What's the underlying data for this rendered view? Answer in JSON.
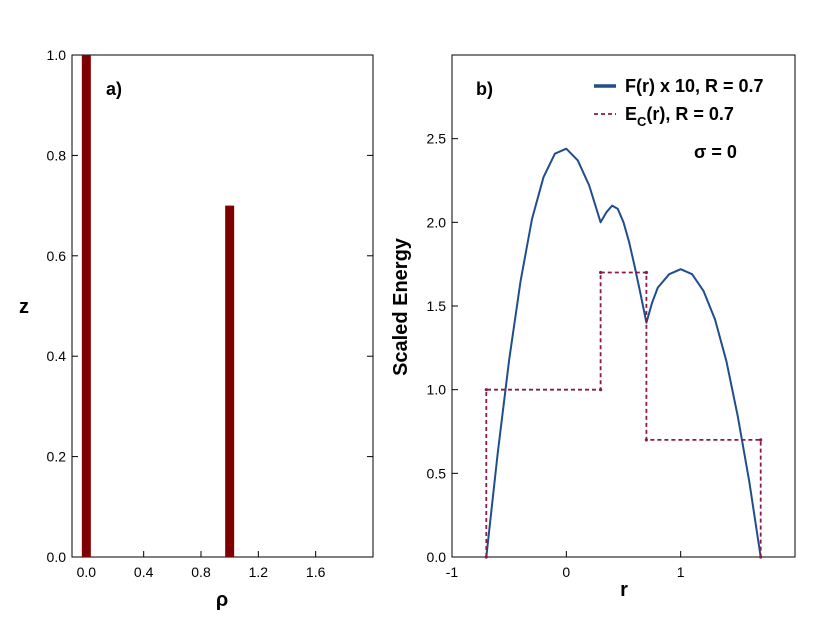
{
  "chart_data": [
    {
      "type": "bar",
      "panel_label": "a)",
      "xlabel": "ρ",
      "ylabel": "z",
      "xlim": [
        -0.1,
        2.0
      ],
      "ylim": [
        0,
        1.0
      ],
      "xticks": [
        0.0,
        0.4,
        0.8,
        1.2,
        1.6
      ],
      "xtick_labels": [
        "0.0",
        "0.4",
        "0.8",
        "1.2",
        "1.6"
      ],
      "yticks": [
        0.0,
        0.2,
        0.4,
        0.6,
        0.8,
        1.0
      ],
      "ytick_labels": [
        "0.0",
        "0.2",
        "0.4",
        "0.6",
        "0.8",
        "1.0"
      ],
      "bars": [
        {
          "x": 0.0,
          "height": 1.0
        },
        {
          "x": 1.0,
          "height": 0.7
        }
      ],
      "bar_color": "#7f0000",
      "grid": false
    },
    {
      "type": "line",
      "panel_label": "b)",
      "xlabel": "r",
      "ylabel": "Scaled Energy",
      "xlim": [
        -1,
        2.0
      ],
      "ylim": [
        0,
        3.0
      ],
      "xticks": [
        -1,
        0,
        1
      ],
      "xtick_labels": [
        "-1",
        "0",
        "1"
      ],
      "yticks": [
        0.0,
        0.5,
        1.0,
        1.5,
        2.0,
        2.5
      ],
      "ytick_labels": [
        "0.0",
        "0.5",
        "1.0",
        "1.5",
        "2.0",
        "2.5"
      ],
      "annotation": "σ = 0",
      "legend_position": "top-right",
      "grid": false,
      "series": [
        {
          "name": "F(r) x 10, R = 0.7",
          "color": "#1f4e8c",
          "style": "solid",
          "x": [
            -0.7,
            -0.6,
            -0.5,
            -0.4,
            -0.3,
            -0.2,
            -0.1,
            0.0,
            0.1,
            0.2,
            0.3,
            0.35,
            0.4,
            0.45,
            0.5,
            0.55,
            0.6,
            0.65,
            0.7,
            0.75,
            0.8,
            0.9,
            1.0,
            1.1,
            1.2,
            1.3,
            1.4,
            1.5,
            1.6,
            1.7
          ],
          "y": [
            0.0,
            0.62,
            1.18,
            1.65,
            2.02,
            2.27,
            2.41,
            2.44,
            2.37,
            2.22,
            2.0,
            2.06,
            2.1,
            2.08,
            2.0,
            1.88,
            1.73,
            1.57,
            1.4,
            1.52,
            1.61,
            1.69,
            1.72,
            1.69,
            1.59,
            1.42,
            1.17,
            0.84,
            0.45,
            0.0
          ]
        },
        {
          "name": "E_C(r), R = 0.7",
          "color": "#8b1a4a",
          "style": "dashed",
          "x": [
            -0.7,
            -0.7,
            0.3,
            0.3,
            0.7,
            0.7,
            1.7,
            1.7
          ],
          "y": [
            0.0,
            1.0,
            1.0,
            1.7,
            1.7,
            0.7,
            0.7,
            0.0
          ]
        }
      ]
    }
  ]
}
